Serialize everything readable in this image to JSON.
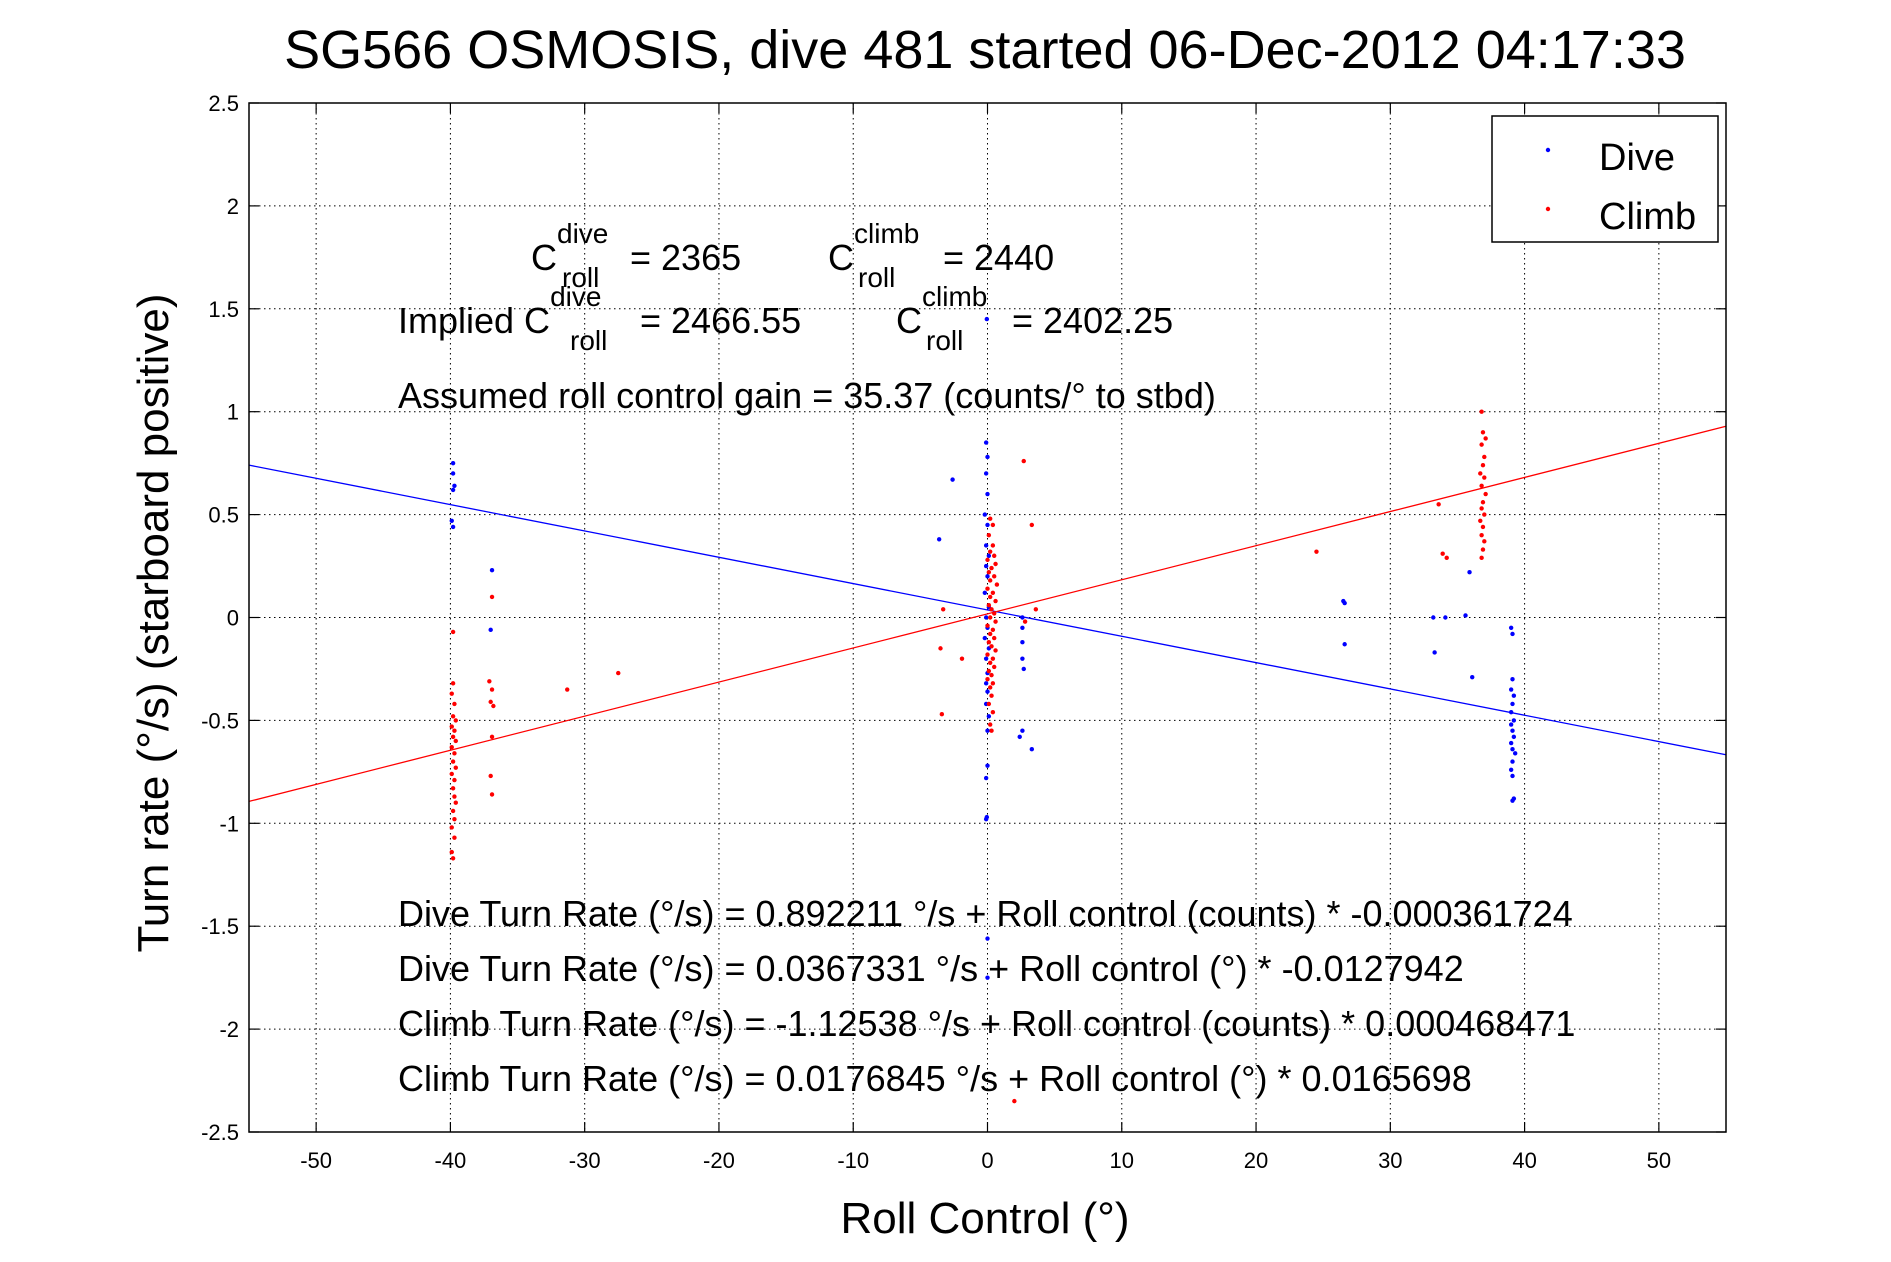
{
  "chart_data": {
    "type": "scatter",
    "title": "SG566 OSMOSIS, dive 481 started 06-Dec-2012 04:17:33",
    "xlabel": "Roll Control (°)",
    "ylabel": "Turn rate (°/s)  (starboard positive)",
    "xlim": [
      -55,
      55
    ],
    "ylim": [
      -2.5,
      2.5
    ],
    "xticks": [
      -50,
      -40,
      -30,
      -20,
      -10,
      0,
      10,
      20,
      30,
      40,
      50
    ],
    "xtick_labels": [
      "-50",
      "-40",
      "-30",
      "-20",
      "-10",
      "0",
      "10",
      "20",
      "30",
      "40",
      "50"
    ],
    "yticks": [
      -2.5,
      -2,
      -1.5,
      -1,
      -0.5,
      0,
      0.5,
      1,
      1.5,
      2,
      2.5
    ],
    "ytick_labels": [
      "-2.5",
      "-2",
      "-1.5",
      "-1",
      "-0.5",
      "0",
      "0.5",
      "1",
      "1.5",
      "2",
      "2.5"
    ],
    "grid": true,
    "legend_position": "top-right",
    "colors": {
      "dive": "#0000ff",
      "climb": "#ff0000",
      "axes": "#000000"
    },
    "series": [
      {
        "name": "Dive",
        "color": "#0000ff",
        "points": [
          [
            -39.8,
            0.75
          ],
          [
            -39.8,
            0.7
          ],
          [
            -39.7,
            0.64
          ],
          [
            -39.8,
            0.62
          ],
          [
            -39.9,
            0.47
          ],
          [
            -39.8,
            0.44
          ],
          [
            -36.9,
            0.23
          ],
          [
            -37.0,
            -0.06
          ],
          [
            -3.6,
            0.38
          ],
          [
            -2.6,
            0.67
          ],
          [
            -0.1,
            0.85
          ],
          [
            0.0,
            0.78
          ],
          [
            -0.1,
            0.7
          ],
          [
            0.0,
            0.6
          ],
          [
            -0.2,
            0.5
          ],
          [
            0.0,
            0.45
          ],
          [
            -0.1,
            0.35
          ],
          [
            0.1,
            0.3
          ],
          [
            -0.1,
            0.25
          ],
          [
            0.0,
            0.2
          ],
          [
            -0.2,
            0.12
          ],
          [
            0.1,
            0.05
          ],
          [
            -0.1,
            0.0
          ],
          [
            0.0,
            -0.05
          ],
          [
            -0.2,
            -0.1
          ],
          [
            0.1,
            -0.15
          ],
          [
            -0.1,
            -0.2
          ],
          [
            0.0,
            -0.27
          ],
          [
            -0.1,
            -0.32
          ],
          [
            0.0,
            -0.36
          ],
          [
            -0.1,
            -0.42
          ],
          [
            0.1,
            -0.48
          ],
          [
            0.0,
            -0.55
          ],
          [
            0.0,
            -0.72
          ],
          [
            -0.1,
            -0.78
          ],
          [
            -0.05,
            -0.97
          ],
          [
            -0.1,
            -0.98
          ],
          [
            -0.05,
            1.45
          ],
          [
            0.0,
            -1.56
          ],
          [
            0.0,
            -1.75
          ],
          [
            2.6,
            0.0
          ],
          [
            2.6,
            -0.05
          ],
          [
            2.6,
            -0.12
          ],
          [
            2.6,
            -0.2
          ],
          [
            2.7,
            -0.25
          ],
          [
            2.6,
            -0.55
          ],
          [
            2.4,
            -0.58
          ],
          [
            3.3,
            -0.64
          ],
          [
            26.6,
            0.07
          ],
          [
            26.5,
            0.08
          ],
          [
            26.6,
            -0.13
          ],
          [
            33.2,
            0.0
          ],
          [
            33.3,
            -0.17
          ],
          [
            34.1,
            0.0
          ],
          [
            35.9,
            0.22
          ],
          [
            35.6,
            0.01
          ],
          [
            36.1,
            -0.29
          ],
          [
            39.0,
            -0.05
          ],
          [
            39.1,
            -0.08
          ],
          [
            39.1,
            -0.3
          ],
          [
            39.0,
            -0.35
          ],
          [
            39.2,
            -0.38
          ],
          [
            39.1,
            -0.42
          ],
          [
            39.0,
            -0.46
          ],
          [
            39.2,
            -0.5
          ],
          [
            39.0,
            -0.52
          ],
          [
            39.1,
            -0.55
          ],
          [
            39.2,
            -0.58
          ],
          [
            39.0,
            -0.61
          ],
          [
            39.1,
            -0.64
          ],
          [
            39.3,
            -0.66
          ],
          [
            39.1,
            -0.7
          ],
          [
            39.0,
            -0.74
          ],
          [
            39.1,
            -0.77
          ],
          [
            39.2,
            -0.88
          ],
          [
            39.1,
            -0.89
          ]
        ]
      },
      {
        "name": "Climb",
        "color": "#ff0000",
        "points": [
          [
            -39.8,
            -0.07
          ],
          [
            -39.8,
            -0.32
          ],
          [
            -39.9,
            -0.37
          ],
          [
            -39.7,
            -0.42
          ],
          [
            -39.8,
            -0.48
          ],
          [
            -39.6,
            -0.5
          ],
          [
            -39.9,
            -0.53
          ],
          [
            -39.7,
            -0.55
          ],
          [
            -39.8,
            -0.58
          ],
          [
            -39.6,
            -0.6
          ],
          [
            -39.9,
            -0.63
          ],
          [
            -39.7,
            -0.66
          ],
          [
            -39.8,
            -0.7
          ],
          [
            -39.6,
            -0.73
          ],
          [
            -39.9,
            -0.76
          ],
          [
            -39.7,
            -0.79
          ],
          [
            -39.8,
            -0.83
          ],
          [
            -39.7,
            -0.87
          ],
          [
            -39.6,
            -0.9
          ],
          [
            -39.8,
            -0.94
          ],
          [
            -39.7,
            -0.98
          ],
          [
            -39.9,
            -1.02
          ],
          [
            -39.7,
            -1.07
          ],
          [
            -39.9,
            -1.14
          ],
          [
            -39.8,
            -1.17
          ],
          [
            -36.9,
            0.1
          ],
          [
            -37.1,
            -0.31
          ],
          [
            -36.9,
            -0.35
          ],
          [
            -37.0,
            -0.41
          ],
          [
            -36.8,
            -0.43
          ],
          [
            -36.9,
            -0.58
          ],
          [
            -37.0,
            -0.77
          ],
          [
            -36.9,
            -0.86
          ],
          [
            -31.3,
            -0.35
          ],
          [
            -27.5,
            -0.27
          ],
          [
            -3.3,
            0.04
          ],
          [
            -3.5,
            -0.15
          ],
          [
            -3.4,
            -0.47
          ],
          [
            -1.9,
            -0.2
          ],
          [
            0.1,
            0.4
          ],
          [
            0.4,
            0.35
          ],
          [
            0.2,
            0.32
          ],
          [
            0.5,
            0.3
          ],
          [
            0.0,
            0.28
          ],
          [
            0.6,
            0.26
          ],
          [
            0.3,
            0.24
          ],
          [
            0.1,
            0.22
          ],
          [
            0.5,
            0.2
          ],
          [
            0.2,
            0.18
          ],
          [
            0.7,
            0.16
          ],
          [
            0.0,
            0.14
          ],
          [
            0.4,
            0.12
          ],
          [
            0.2,
            0.1
          ],
          [
            0.6,
            0.08
          ],
          [
            0.1,
            0.06
          ],
          [
            0.3,
            0.04
          ],
          [
            0.5,
            0.02
          ],
          [
            0.2,
            0.0
          ],
          [
            0.6,
            -0.02
          ],
          [
            0.0,
            -0.04
          ],
          [
            0.4,
            -0.06
          ],
          [
            0.2,
            -0.08
          ],
          [
            0.5,
            -0.1
          ],
          [
            0.1,
            -0.12
          ],
          [
            0.3,
            -0.14
          ],
          [
            0.6,
            -0.16
          ],
          [
            0.0,
            -0.18
          ],
          [
            0.4,
            -0.2
          ],
          [
            0.2,
            -0.22
          ],
          [
            0.5,
            -0.24
          ],
          [
            0.1,
            -0.26
          ],
          [
            0.3,
            -0.28
          ],
          [
            0.0,
            -0.3
          ],
          [
            0.4,
            -0.32
          ],
          [
            0.2,
            -0.34
          ],
          [
            0.3,
            -0.38
          ],
          [
            0.1,
            -0.42
          ],
          [
            0.4,
            -0.46
          ],
          [
            0.2,
            -0.52
          ],
          [
            0.3,
            -0.55
          ],
          [
            0.2,
            0.48
          ],
          [
            0.4,
            0.45
          ],
          [
            2.7,
            0.76
          ],
          [
            3.3,
            0.45
          ],
          [
            3.6,
            0.04
          ],
          [
            2.8,
            -0.02
          ],
          [
            2.0,
            -2.35
          ],
          [
            24.5,
            0.32
          ],
          [
            33.6,
            0.55
          ],
          [
            33.9,
            0.31
          ],
          [
            34.2,
            0.29
          ],
          [
            36.8,
            1.0
          ],
          [
            36.9,
            0.9
          ],
          [
            37.1,
            0.87
          ],
          [
            36.8,
            0.84
          ],
          [
            37.0,
            0.78
          ],
          [
            36.9,
            0.74
          ],
          [
            36.7,
            0.7
          ],
          [
            37.0,
            0.68
          ],
          [
            36.8,
            0.64
          ],
          [
            37.1,
            0.6
          ],
          [
            36.9,
            0.56
          ],
          [
            36.8,
            0.53
          ],
          [
            37.0,
            0.5
          ],
          [
            36.7,
            0.47
          ],
          [
            36.9,
            0.44
          ],
          [
            36.8,
            0.4
          ],
          [
            37.0,
            0.37
          ],
          [
            36.9,
            0.33
          ],
          [
            36.8,
            0.29
          ]
        ]
      }
    ],
    "fit_lines": [
      {
        "series": "Dive",
        "color": "#0000ff",
        "intercept": 0.0367331,
        "slope": -0.0127942
      },
      {
        "series": "Climb",
        "color": "#ff0000",
        "intercept": 0.0176845,
        "slope": 0.0165698
      }
    ],
    "annotations": {
      "c_roll_dive_base": "C",
      "c_roll_dive_sup": "dive",
      "c_roll_dive_sub": "roll",
      "c_roll_dive_value": "= 2365",
      "c_roll_climb_base": "C",
      "c_roll_climb_sup": "climb",
      "c_roll_climb_sub": "roll",
      "c_roll_climb_value": "= 2440",
      "implied_prefix": "Implied C",
      "implied_dive_sup": "dive",
      "implied_dive_sub": "roll",
      "implied_dive_value": "= 2466.55",
      "implied_climb_base": "C",
      "implied_climb_sup": "climb",
      "implied_climb_sub": "roll",
      "implied_climb_value": "= 2402.25",
      "gain": "Assumed roll control gain = 35.37 (counts/° to stbd)",
      "eq1": "Dive Turn Rate (°/s) = 0.892211 °/s + Roll control (counts) * -0.000361724",
      "eq2": "Dive Turn Rate (°/s) = 0.0367331 °/s + Roll control (°) * -0.0127942",
      "eq3": "Climb Turn Rate (°/s) = -1.12538 °/s + Roll control (counts) * 0.000468471",
      "eq4": "Climb Turn Rate (°/s) = 0.0176845 °/s + Roll control (°) * 0.0165698"
    }
  }
}
